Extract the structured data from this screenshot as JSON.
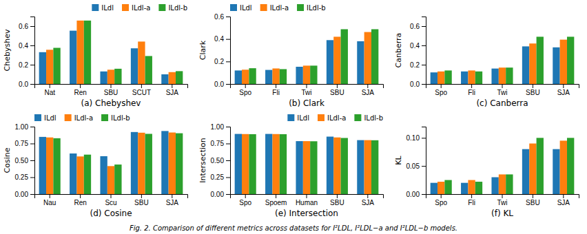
{
  "chart_data": [
    {
      "type": "bar",
      "xlabel": "(a) Chebyshev",
      "ylabel": "Chebyshev",
      "categories": [
        "Nat",
        "Ren",
        "SBU",
        "SCUT",
        "SJA"
      ],
      "series": [
        {
          "name": "ILdl",
          "color": "#1f77b4",
          "values": [
            0.33,
            0.553,
            0.13,
            0.37,
            0.1
          ]
        },
        {
          "name": "ILdl-a",
          "color": "#ff7f0e",
          "values": [
            0.355,
            0.658,
            0.148,
            0.44,
            0.123
          ]
        },
        {
          "name": "ILdl-b",
          "color": "#2ca02c",
          "values": [
            0.375,
            0.658,
            0.158,
            0.29,
            0.133
          ]
        }
      ],
      "ylim": [
        0.0,
        0.7
      ],
      "yticks": [
        {
          "value": 0,
          "label": "0.0"
        },
        0.2,
        0.4,
        0.6
      ],
      "legend": "upper right"
    },
    {
      "type": "bar",
      "xlabel": "(b) Clark",
      "ylabel": "Clark",
      "categories": [
        "Spo",
        "Fli",
        "Twi",
        "SBU",
        "SJA"
      ],
      "series": [
        {
          "name": "ILdl",
          "color": "#1f77b4",
          "values": [
            0.12,
            0.125,
            0.153,
            0.39,
            0.38
          ]
        },
        {
          "name": "ILdl-a",
          "color": "#ff7f0e",
          "values": [
            0.127,
            0.138,
            0.163,
            0.42,
            0.462
          ]
        },
        {
          "name": "ILdl-b",
          "color": "#2ca02c",
          "values": [
            0.14,
            0.132,
            0.163,
            0.487,
            0.487
          ]
        }
      ],
      "ylim": [
        0.0,
        0.6
      ],
      "yticks": [
        {
          "value": 0,
          "label": "0.0"
        },
        0.2,
        0.4,
        0.6
      ],
      "legend": "upper left"
    },
    {
      "type": "bar",
      "xlabel": "(c) Canberra",
      "ylabel": "Canberra",
      "categories": [
        "Spo",
        "Fli",
        "Twi",
        "SBU",
        "SJA"
      ],
      "series": [
        {
          "name": "ILdl",
          "color": "#1f77b4",
          "values": [
            0.12,
            0.13,
            0.16,
            0.39,
            0.38
          ]
        },
        {
          "name": "ILdl-a",
          "color": "#ff7f0e",
          "values": [
            0.13,
            0.14,
            0.17,
            0.42,
            0.46
          ]
        },
        {
          "name": "ILdl-b",
          "color": "#2ca02c",
          "values": [
            0.14,
            0.13,
            0.17,
            0.49,
            0.49
          ]
        }
      ],
      "ylim": [
        0.0,
        0.7
      ],
      "yticks": [
        {
          "value": 0,
          "label": "0.0"
        },
        0.2,
        0.4,
        0.6
      ],
      "legend": false
    },
    {
      "type": "bar",
      "xlabel": "(d) Cosine",
      "ylabel": "Cosine",
      "categories": [
        "Nau",
        "Ren",
        "Scu",
        "SBU",
        "SJA"
      ],
      "series": [
        {
          "name": "ILdl",
          "color": "#1f77b4",
          "values": [
            0.848,
            0.602,
            0.562,
            0.92,
            0.935
          ]
        },
        {
          "name": "ILdl-a",
          "color": "#ff7f0e",
          "values": [
            0.84,
            0.558,
            0.415,
            0.91,
            0.913
          ]
        },
        {
          "name": "ILdl-b",
          "color": "#2ca02c",
          "values": [
            0.828,
            0.585,
            0.438,
            0.893,
            0.902
          ]
        }
      ],
      "ylim": [
        0.0,
        1.0
      ],
      "yticks": [
        {
          "value": 0,
          "label": "0.00"
        },
        0.25,
        {
          "value": 0.5,
          "label": "0.50"
        },
        0.75,
        {
          "value": 1,
          "label": "1.00"
        }
      ],
      "legend": "upper left"
    },
    {
      "type": "bar",
      "xlabel": "(e) Intersection",
      "ylabel": "Intersection",
      "categories": [
        "Spo",
        "Spoem",
        "Human",
        "SBU",
        "SJA"
      ],
      "series": [
        {
          "name": "ILdl",
          "color": "#1f77b4",
          "values": [
            0.892,
            0.892,
            0.785,
            0.852,
            0.8
          ]
        },
        {
          "name": "ILdl-a",
          "color": "#ff7f0e",
          "values": [
            0.89,
            0.89,
            0.785,
            0.84,
            0.8
          ]
        },
        {
          "name": "ILdl-b",
          "color": "#2ca02c",
          "values": [
            0.888,
            0.888,
            0.783,
            0.832,
            0.798
          ]
        }
      ],
      "ylim": [
        0.0,
        1.0
      ],
      "yticks": [
        {
          "value": 0,
          "label": "0.00"
        },
        0.25,
        {
          "value": 0.5,
          "label": "0.50"
        },
        0.75,
        {
          "value": 1,
          "label": "1.00"
        }
      ],
      "legend": "upper right"
    },
    {
      "type": "bar",
      "xlabel": "(f) KL",
      "ylabel": "KL",
      "categories": [
        "Spo",
        "Fli",
        "Twi",
        "SBU",
        "SJA"
      ],
      "series": [
        {
          "name": "ILdl",
          "color": "#1f77b4",
          "values": [
            0.02,
            0.02,
            0.03,
            0.08,
            0.08
          ]
        },
        {
          "name": "ILdl-a",
          "color": "#ff7f0e",
          "values": [
            0.022,
            0.025,
            0.035,
            0.09,
            0.095
          ]
        },
        {
          "name": "ILdl-b",
          "color": "#2ca02c",
          "values": [
            0.025,
            0.022,
            0.035,
            0.1,
            0.1
          ]
        }
      ],
      "ylim": [
        0.0,
        0.12
      ],
      "yticks": [
        {
          "value": 0,
          "label": "0.00"
        },
        0.05,
        {
          "value": 0.1,
          "label": "0.10"
        }
      ],
      "legend": false
    }
  ],
  "caption": "Fig. 2.  Comparison of different metrics across datasets for I²LDL, I²LDL−a and I²LDL−b models."
}
